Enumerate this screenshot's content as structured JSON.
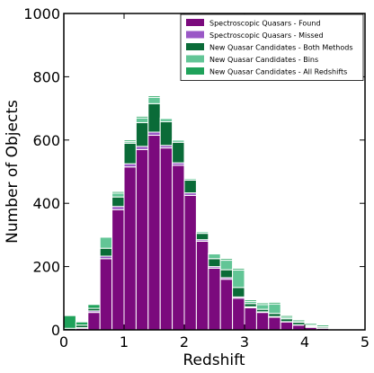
{
  "chart_data": {
    "type": "bar",
    "stacked": true,
    "xlabel": "Redshift",
    "ylabel": "Number of Objects",
    "xlim": [
      0,
      5
    ],
    "ylim": [
      0,
      1000
    ],
    "xticks": [
      "0",
      "1",
      "2",
      "3",
      "4",
      "5"
    ],
    "yticks": [
      "0",
      "200",
      "400",
      "600",
      "800",
      "1000"
    ],
    "bin_width": 0.2,
    "bin_starts": [
      0.0,
      0.2,
      0.4,
      0.6,
      0.8,
      1.0,
      1.2,
      1.4,
      1.6,
      1.8,
      2.0,
      2.2,
      2.4,
      2.6,
      2.8,
      3.0,
      3.2,
      3.4,
      3.6,
      3.8,
      4.0,
      4.2,
      4.4,
      4.6,
      4.8
    ],
    "legend_position": "top-right",
    "series": [
      {
        "name": "Spectroscopic Quasars - Found",
        "color": "#7b0a7d",
        "values": [
          0,
          5,
          55,
          225,
          380,
          515,
          570,
          615,
          575,
          520,
          425,
          280,
          195,
          160,
          100,
          70,
          55,
          40,
          25,
          15,
          8,
          5,
          3,
          2,
          0
        ]
      },
      {
        "name": "Spectroscopic Quasars - Missed",
        "color": "#9a58c6",
        "values": [
          0,
          2,
          5,
          8,
          10,
          10,
          10,
          10,
          8,
          8,
          8,
          5,
          5,
          5,
          4,
          3,
          2,
          2,
          1,
          1,
          1,
          0,
          0,
          0,
          0
        ]
      },
      {
        "name": "New Quasar Candidates - Both Methods",
        "color": "#0a6b38",
        "values": [
          5,
          8,
          8,
          25,
          30,
          65,
          75,
          90,
          75,
          65,
          40,
          20,
          25,
          25,
          30,
          10,
          8,
          10,
          9,
          8,
          3,
          4,
          1,
          1,
          0
        ]
      },
      {
        "name": "New Quasar Candidates - Bins",
        "color": "#62c596",
        "values": [
          0,
          0,
          0,
          35,
          12,
          5,
          15,
          20,
          10,
          7,
          5,
          5,
          15,
          30,
          55,
          7,
          15,
          30,
          5,
          2,
          3,
          1,
          1,
          0,
          0
        ]
      },
      {
        "name": "New Quasar Candidates - All Redshifts",
        "color": "#1fa25a",
        "values": [
          40,
          10,
          12,
          2,
          5,
          5,
          5,
          5,
          2,
          2,
          2,
          0,
          2,
          5,
          5,
          5,
          5,
          5,
          5,
          5,
          5,
          5,
          2,
          2,
          0
        ]
      }
    ]
  }
}
